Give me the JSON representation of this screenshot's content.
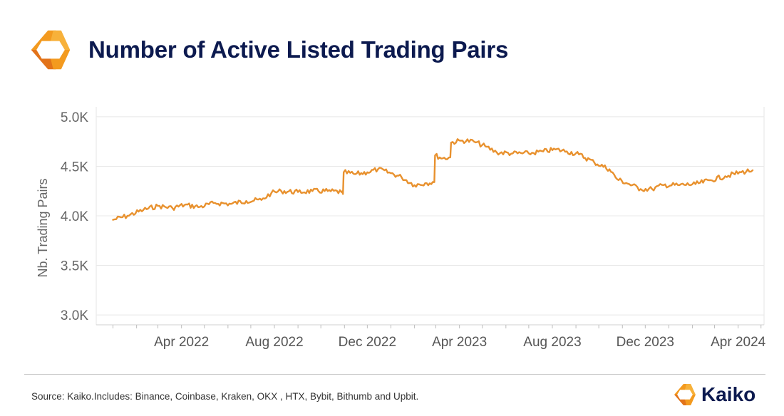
{
  "header": {
    "title": "Number of Active Listed Trading Pairs",
    "logo_icon": "kaiko-hexagon-icon"
  },
  "footer": {
    "source": "Source: Kaiko.Includes: Binance, Coinbase, Kraken, OKX , HTX, Bybit, Bithumb and Upbit.",
    "brand_name": "Kaiko",
    "brand_icon": "kaiko-hexagon-icon"
  },
  "colors": {
    "line": "#e8912e",
    "logo_orange": "#f39a1f",
    "logo_dark_orange": "#e2731a",
    "title_navy": "#0c1a4f"
  },
  "chart_data": {
    "type": "line",
    "title": "Number of Active Listed Trading Pairs",
    "ylabel": "Nb. Trading Pairs",
    "xlabel": "",
    "ylim": [
      2900,
      5100
    ],
    "xlim": [
      "2021-12-10",
      "2024-05-05"
    ],
    "yticks": [
      {
        "value": 3000,
        "label": "3.0K"
      },
      {
        "value": 3500,
        "label": "3.5K"
      },
      {
        "value": 4000,
        "label": "4.0K"
      },
      {
        "value": 4500,
        "label": "4.5K"
      },
      {
        "value": 5000,
        "label": "5.0K"
      }
    ],
    "xticks": [
      {
        "date": "2022-04-01",
        "label": "Apr 2022"
      },
      {
        "date": "2022-08-01",
        "label": "Aug 2022"
      },
      {
        "date": "2022-12-01",
        "label": "Dec 2022"
      },
      {
        "date": "2023-04-01",
        "label": "Apr 2023"
      },
      {
        "date": "2023-08-01",
        "label": "Aug 2023"
      },
      {
        "date": "2023-12-01",
        "label": "Dec 2023"
      },
      {
        "date": "2024-04-01",
        "label": "Apr 2024"
      }
    ],
    "grid": "horizontal",
    "series": [
      {
        "points": [
          [
            "2022-01-01",
            3960
          ],
          [
            "2022-01-20",
            4000
          ],
          [
            "2022-02-10",
            4060
          ],
          [
            "2022-03-01",
            4100
          ],
          [
            "2022-03-20",
            4080
          ],
          [
            "2022-04-05",
            4110
          ],
          [
            "2022-04-25",
            4090
          ],
          [
            "2022-05-15",
            4130
          ],
          [
            "2022-06-05",
            4120
          ],
          [
            "2022-06-25",
            4150
          ],
          [
            "2022-07-15",
            4160
          ],
          [
            "2022-07-28",
            4230
          ],
          [
            "2022-08-10",
            4250
          ],
          [
            "2022-09-01",
            4240
          ],
          [
            "2022-09-20",
            4250
          ],
          [
            "2022-10-10",
            4250
          ],
          [
            "2022-10-28",
            4240
          ],
          [
            "2022-10-30",
            4220
          ],
          [
            "2022-10-31",
            4440
          ],
          [
            "2022-11-15",
            4420
          ],
          [
            "2022-12-01",
            4440
          ],
          [
            "2022-12-15",
            4470
          ],
          [
            "2023-01-01",
            4430
          ],
          [
            "2023-01-15",
            4390
          ],
          [
            "2023-02-01",
            4310
          ],
          [
            "2023-02-15",
            4330
          ],
          [
            "2023-02-27",
            4340
          ],
          [
            "2023-02-28",
            4610
          ],
          [
            "2023-03-10",
            4580
          ],
          [
            "2023-03-20",
            4590
          ],
          [
            "2023-03-21",
            4740
          ],
          [
            "2023-04-05",
            4760
          ],
          [
            "2023-04-20",
            4750
          ],
          [
            "2023-05-05",
            4700
          ],
          [
            "2023-05-20",
            4640
          ],
          [
            "2023-06-10",
            4630
          ],
          [
            "2023-07-01",
            4630
          ],
          [
            "2023-07-20",
            4650
          ],
          [
            "2023-08-05",
            4670
          ],
          [
            "2023-08-20",
            4650
          ],
          [
            "2023-09-05",
            4620
          ],
          [
            "2023-09-25",
            4540
          ],
          [
            "2023-10-15",
            4470
          ],
          [
            "2023-10-25",
            4370
          ],
          [
            "2023-11-10",
            4320
          ],
          [
            "2023-11-25",
            4270
          ],
          [
            "2023-12-10",
            4270
          ],
          [
            "2023-12-25",
            4310
          ],
          [
            "2024-01-15",
            4310
          ],
          [
            "2024-02-05",
            4320
          ],
          [
            "2024-02-25",
            4360
          ],
          [
            "2024-03-15",
            4400
          ],
          [
            "2024-04-05",
            4440
          ],
          [
            "2024-04-20",
            4460
          ]
        ]
      }
    ]
  }
}
